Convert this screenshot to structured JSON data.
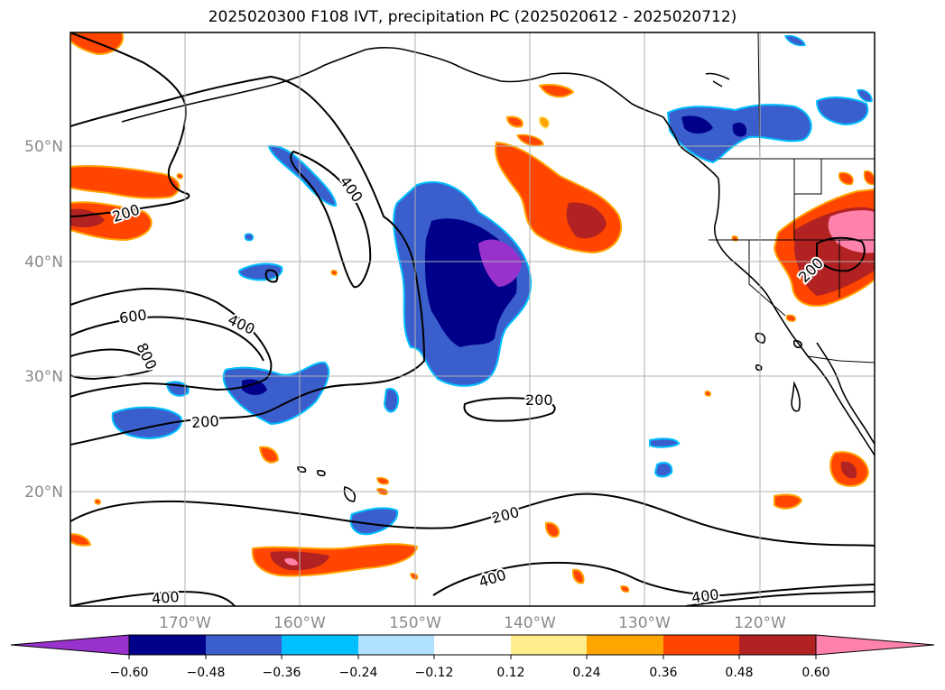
{
  "title": "2025020300 F108 IVT, precipitation PC (2025020612 - 2025020712)",
  "map": {
    "lat_labels": [
      "50°N",
      "40°N",
      "30°N",
      "20°N"
    ],
    "lon_labels": [
      "170°W",
      "160°W",
      "150°W",
      "140°W",
      "130°W",
      "120°W"
    ],
    "contour_labels": [
      "400",
      "200",
      "600",
      "400",
      "800",
      "200",
      "200",
      "200",
      "400",
      "400",
      "200",
      "400"
    ]
  },
  "colorbar": {
    "tick_labels": [
      "−0.60",
      "−0.48",
      "−0.36",
      "−0.24",
      "−0.12",
      "0.12",
      "0.24",
      "0.36",
      "0.48",
      "0.60"
    ],
    "colors": [
      "#9932cc",
      "#00008b",
      "#3a5fcd",
      "#00bfff",
      "#b0e2ff",
      "#ffffff",
      "#ffec8b",
      "#ffa500",
      "#ff4500",
      "#b22222",
      "#ff82ab",
      "#ff82ab"
    ]
  }
}
